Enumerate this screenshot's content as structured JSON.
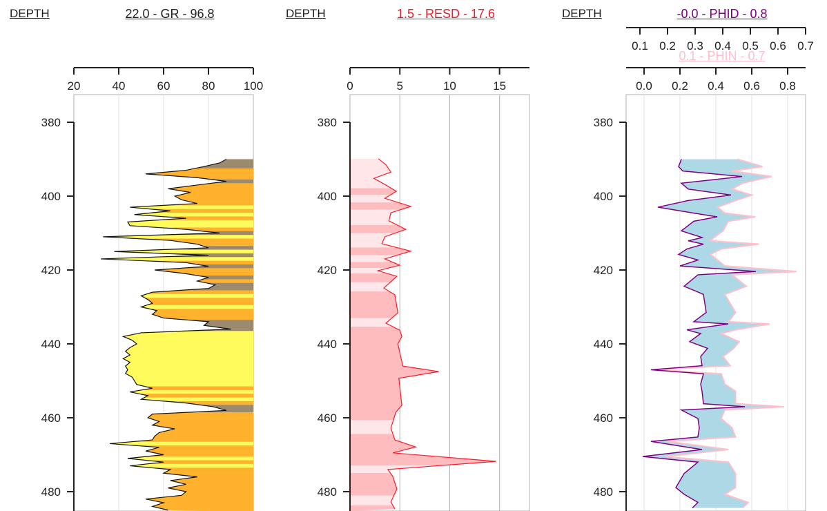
{
  "tracks": [
    {
      "depth_label": "DEPTH",
      "title": "22.0 - GR - 96.8",
      "title_color": "#222222"
    },
    {
      "depth_label": "DEPTH",
      "title": "1.5 - RESD - 17.6",
      "title_color": "#e8202a"
    },
    {
      "depth_label": "DEPTH",
      "title": "-0.0 - PHID - 0.8",
      "title_color": "#800080",
      "title2": "0.1 - PHIN - 0.7",
      "title2_color": "#ffc0cb"
    }
  ],
  "chart_data": [
    {
      "type": "area",
      "curve": "GR",
      "xlim": [
        20,
        100
      ],
      "xticks": [
        "20",
        "40",
        "60",
        "80",
        "100"
      ],
      "ylim": [
        372.5,
        485
      ],
      "yticks": [
        "380",
        "400",
        "420",
        "440",
        "460",
        "480"
      ],
      "grid": true,
      "fill_to": "right",
      "fill_colors": {
        "low": "#fffb5c",
        "mid": "#ffb22e",
        "high": "#9c8a6e"
      },
      "fill_thresholds": [
        52,
        78
      ],
      "line_color": "#111111",
      "depth": [
        390,
        391,
        392,
        393,
        394,
        395,
        396,
        397,
        398,
        399,
        400,
        401,
        402,
        403,
        404,
        405,
        406,
        407,
        408,
        409,
        410,
        411,
        412,
        413,
        414,
        415,
        416,
        417,
        418,
        419,
        420,
        421,
        422,
        423,
        424,
        425,
        426,
        427,
        428,
        429,
        430,
        431,
        432,
        433,
        434,
        435,
        436,
        437,
        438,
        439,
        440,
        441,
        442,
        443,
        444,
        445,
        446,
        447,
        448,
        449,
        450,
        451,
        452,
        453,
        454,
        455,
        456,
        457,
        458,
        459,
        460,
        461,
        462,
        463,
        464,
        465,
        466,
        467,
        468,
        469,
        470,
        471,
        472,
        473,
        474,
        475,
        476,
        477,
        478,
        479,
        480,
        481,
        482,
        483,
        484,
        485
      ],
      "values": [
        88,
        85,
        78,
        70,
        52,
        75,
        88,
        75,
        62,
        72,
        65,
        68,
        75,
        45,
        63,
        47,
        70,
        44,
        45,
        70,
        85,
        33,
        63,
        75,
        80,
        38,
        80,
        32,
        70,
        80,
        56,
        70,
        80,
        75,
        83,
        80,
        55,
        50,
        53,
        55,
        50,
        57,
        55,
        60,
        80,
        78,
        90,
        50,
        42,
        46,
        48,
        45,
        43,
        45,
        42,
        45,
        43,
        44,
        43,
        46,
        47,
        48,
        55,
        45,
        53,
        50,
        70,
        82,
        88,
        55,
        53,
        58,
        55,
        65,
        58,
        56,
        55,
        36,
        58,
        52,
        60,
        44,
        60,
        45,
        63,
        60,
        75,
        63,
        70,
        62,
        70,
        68,
        52,
        60,
        55,
        62
      ]
    },
    {
      "type": "area",
      "curve": "RESD",
      "xlim": [
        0,
        18
      ],
      "xticks": [
        "0",
        "5",
        "10",
        "15"
      ],
      "ylim": [
        372.5,
        485
      ],
      "yticks": [
        "380",
        "400",
        "420",
        "440",
        "460",
        "480"
      ],
      "grid": true,
      "fill_to": "left",
      "fill_colors": {
        "low": "#ffe6e8",
        "high": "#ffbcbf"
      },
      "fill_thresholds": [
        4.3
      ],
      "line_color": "#ff1a2a",
      "depth": [
        389.9,
        391.5,
        393.5,
        395.2,
        397,
        398.7,
        400.6,
        402.8,
        404.5,
        406.7,
        409,
        411,
        412.9,
        414.9,
        417,
        418.7,
        420.2,
        421.7,
        424.9,
        426.7,
        431.6,
        434.4,
        436.3,
        438,
        440,
        446,
        447.5,
        449.3,
        456.6,
        458.5,
        462.8,
        466,
        467.9,
        469.5,
        471.8,
        474,
        475.9,
        479.3,
        482.8,
        484.7
      ],
      "values": [
        2.85,
        3.6,
        4.1,
        2.4,
        3.6,
        4.65,
        3.5,
        6.1,
        4.1,
        3.9,
        5.6,
        3.5,
        3.2,
        6.1,
        3.5,
        5.0,
        2.8,
        4.7,
        3.4,
        4.5,
        4.8,
        3.6,
        5.0,
        5.2,
        4.8,
        5.3,
        8.9,
        4.9,
        5.2,
        4.6,
        4.1,
        4.5,
        6.6,
        4.3,
        14.65,
        3.8,
        4.3,
        4.7,
        4.1,
        4.5
      ]
    },
    {
      "type": "line",
      "ylim": [
        372.5,
        485
      ],
      "yticks": [
        "380",
        "400",
        "420",
        "440",
        "460",
        "480"
      ],
      "grid": true,
      "crossover_fill": "#add8e6",
      "depth": [
        390,
        392,
        393.2,
        394.7,
        396.5,
        398.1,
        399.7,
        401.2,
        403,
        404.6,
        405.6,
        406.8,
        409.4,
        411.2,
        412.1,
        413,
        414.3,
        415.8,
        417.3,
        418.9,
        420.4,
        421.3,
        424.4,
        426.6,
        431.5,
        434,
        434.6,
        436.2,
        437.2,
        439.4,
        441.2,
        443.4,
        445.9,
        447,
        448.1,
        450.9,
        452.8,
        456.2,
        457,
        457.9,
        460.2,
        462.7,
        465.2,
        466.4,
        468.6,
        470.5,
        472,
        475.1,
        478.9,
        480.7,
        482.9,
        484.4
      ],
      "series": [
        {
          "name": "PHID",
          "color": "#800080",
          "xlim": [
            0.05,
            0.7
          ],
          "xticks": [
            "0.1",
            "0.2",
            "0.3",
            "0.4",
            "0.5",
            "0.6",
            "0.7"
          ],
          "values": [
            0.25,
            0.24,
            0.255,
            0.47,
            0.25,
            0.275,
            0.43,
            0.275,
            0.165,
            0.295,
            0.38,
            0.295,
            0.25,
            0.325,
            0.275,
            0.33,
            0.27,
            0.24,
            0.31,
            0.245,
            0.52,
            0.31,
            0.26,
            0.33,
            0.34,
            0.295,
            0.42,
            0.27,
            0.32,
            0.28,
            0.345,
            0.32,
            0.325,
            0.14,
            0.33,
            0.32,
            0.325,
            0.33,
            0.48,
            0.25,
            0.31,
            0.315,
            0.31,
            0.14,
            0.325,
            0.11,
            0.31,
            0.26,
            0.23,
            0.26,
            0.31,
            0.29
          ]
        },
        {
          "name": "PHIN",
          "color": "#ffc0cb",
          "xlim": [
            -0.1,
            0.9
          ],
          "xticks": [
            "0.0",
            "0.2",
            "0.4",
            "0.6",
            "0.8"
          ],
          "values": [
            0.52,
            0.66,
            0.49,
            0.71,
            0.55,
            0.49,
            0.6,
            0.51,
            0.41,
            0.45,
            0.62,
            0.47,
            0.44,
            0.39,
            0.37,
            0.64,
            0.43,
            0.37,
            0.41,
            0.45,
            0.85,
            0.49,
            0.57,
            0.45,
            0.51,
            0.47,
            0.7,
            0.51,
            0.43,
            0.53,
            0.5,
            0.44,
            0.48,
            0.07,
            0.43,
            0.45,
            0.51,
            0.51,
            0.78,
            0.45,
            0.43,
            0.49,
            0.51,
            0.13,
            0.47,
            0.12,
            0.47,
            0.51,
            0.51,
            0.45,
            0.58,
            0.55
          ]
        }
      ]
    }
  ]
}
